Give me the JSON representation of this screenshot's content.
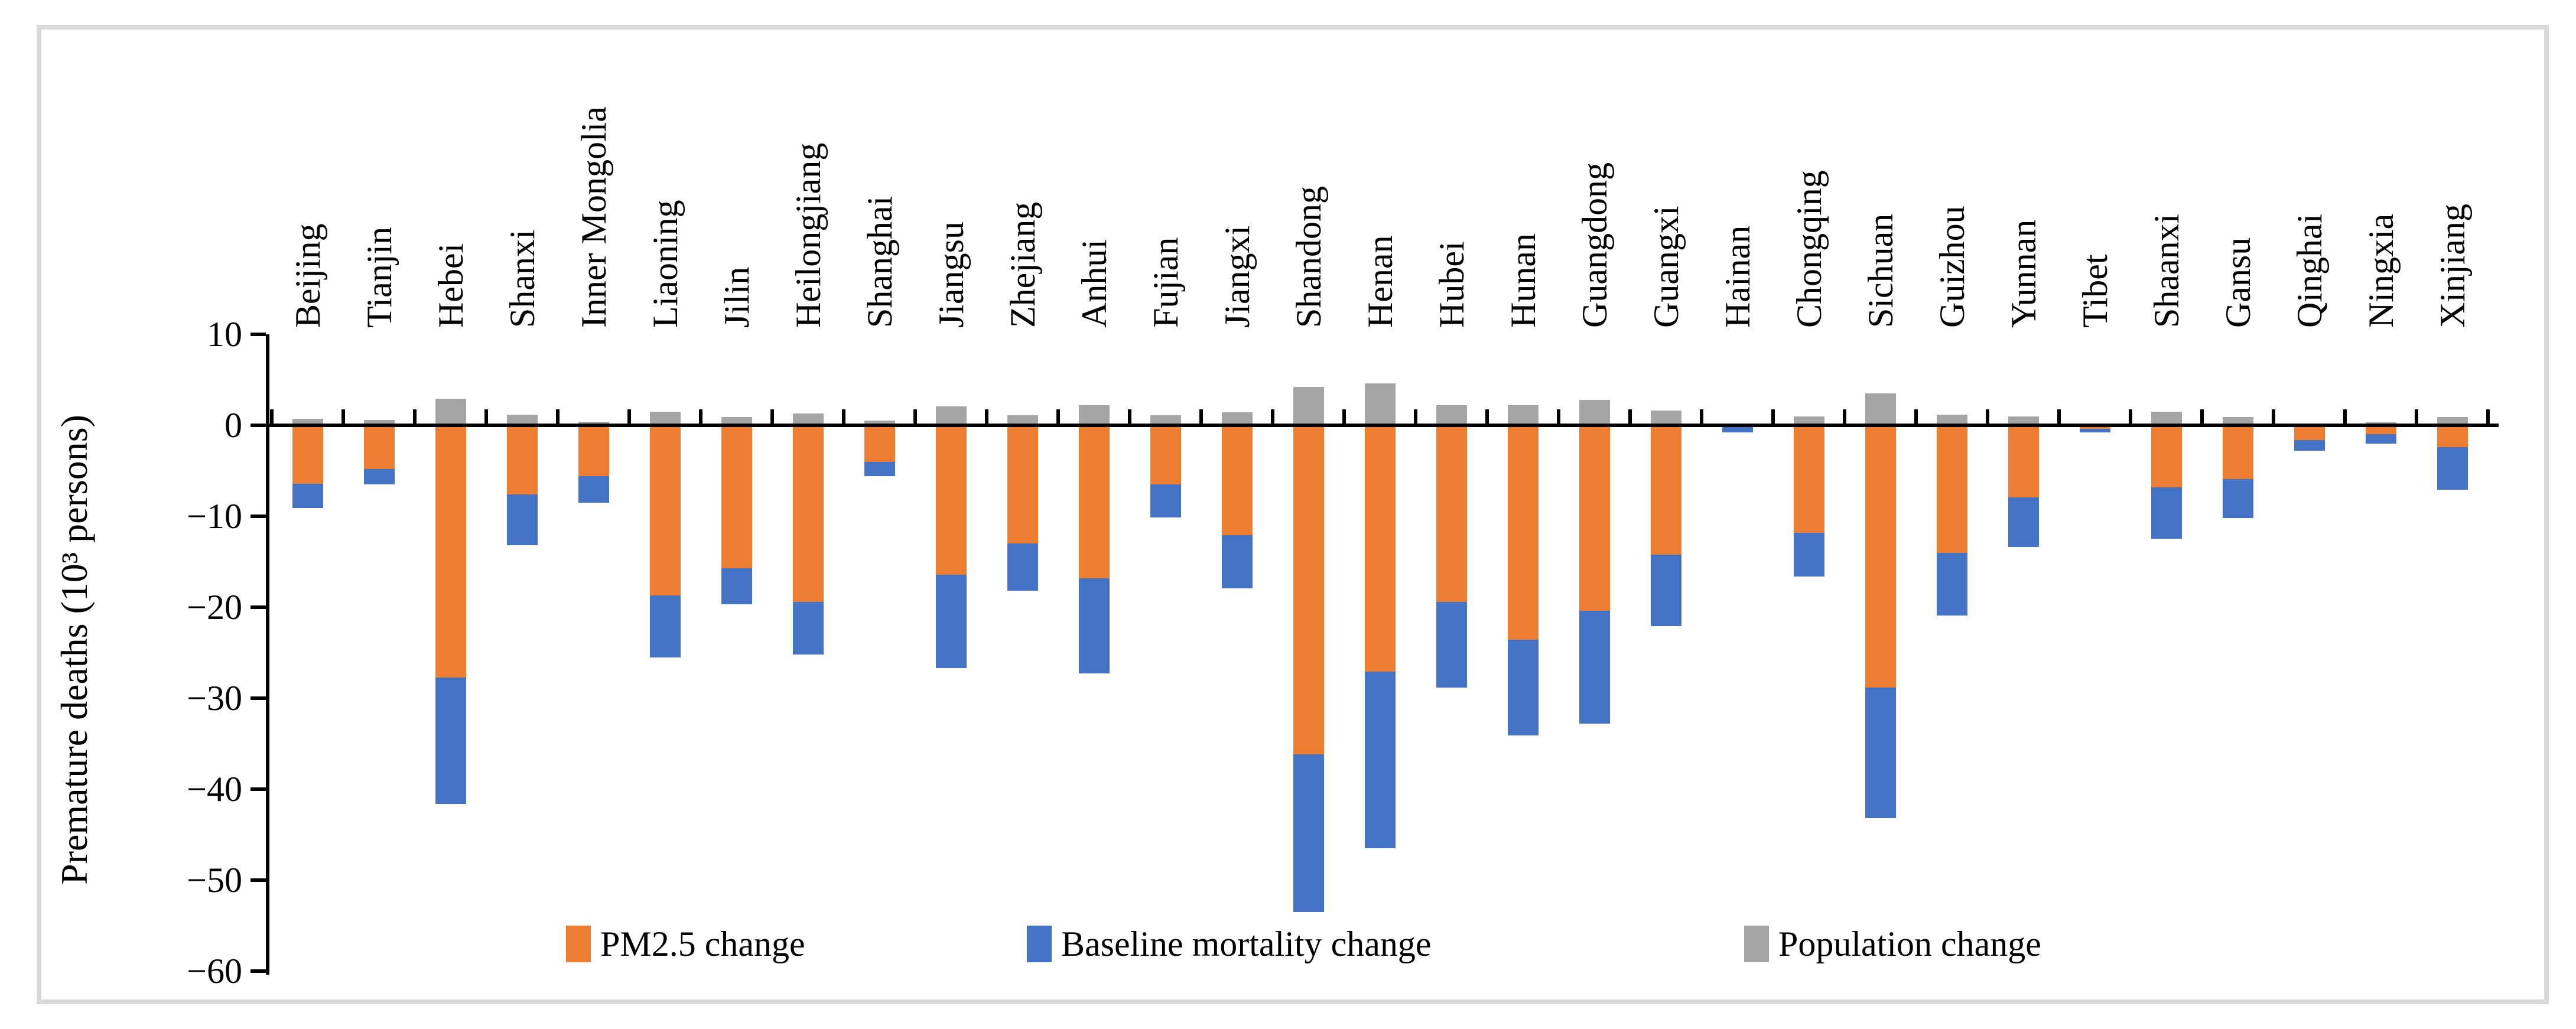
{
  "figure": {
    "background_color": "#ffffff",
    "frame_border_color": "#d9d9d9",
    "axis_color": "#000000"
  },
  "chart_data": {
    "type": "bar",
    "stacked": true,
    "orientation": "vertical",
    "title": "",
    "xlabel": "",
    "ylabel": "Premature deaths (10³ persons)",
    "ylim": [
      -60,
      10
    ],
    "ytick_interval": 10,
    "yticks": [
      10,
      0,
      -10,
      -20,
      -30,
      -40,
      -50,
      -60
    ],
    "ytick_labels": [
      "10",
      "0",
      "−10",
      "−20",
      "−30",
      "−40",
      "−50",
      "−60"
    ],
    "grid": false,
    "legend_position": "bottom-inside",
    "category_labels_position": "top-rotated-90",
    "categories": [
      "Beijing",
      "Tianjin",
      "Hebei",
      "Shanxi",
      "Inner Mongolia",
      "Liaoning",
      "Jilin",
      "Heilongjiang",
      "Shanghai",
      "Jiangsu",
      "Zhejiang",
      "Anhui",
      "Fujian",
      "Jiangxi",
      "Shandong",
      "Henan",
      "Hubei",
      "Hunan",
      "Guangdong",
      "Guangxi",
      "Hainan",
      "Chongqing",
      "Sichuan",
      "Guizhou",
      "Yunnan",
      "Tibet",
      "Shaanxi",
      "Gansu",
      "Qinghai",
      "Ningxia",
      "Xinjiang"
    ],
    "series": [
      {
        "name": "PM2.5 change",
        "color": "#ED7D31",
        "values": [
          -6.4,
          -4.8,
          -27.7,
          -7.6,
          -5.6,
          -18.7,
          -15.7,
          -19.4,
          -4.0,
          -16.4,
          -13.0,
          -16.8,
          -6.5,
          -12.1,
          -36.2,
          -27.1,
          -19.4,
          -23.6,
          -20.4,
          -14.2,
          -0.1,
          -11.8,
          -28.8,
          -14.0,
          -7.9,
          -0.4,
          -6.8,
          -5.9,
          -1.6,
          -1.0,
          -2.4
        ]
      },
      {
        "name": "Baseline mortality change",
        "color": "#4472C4",
        "values": [
          -2.7,
          -1.7,
          -13.9,
          -5.6,
          -2.9,
          -6.8,
          -4.0,
          -5.8,
          -1.6,
          -10.3,
          -5.2,
          -10.5,
          -3.6,
          -5.8,
          -17.3,
          -19.4,
          -9.4,
          -10.5,
          -12.4,
          -7.9,
          -0.7,
          -4.8,
          -14.4,
          -6.9,
          -5.5,
          -0.4,
          -5.7,
          -4.3,
          -1.2,
          -1.0,
          -4.7
        ]
      },
      {
        "name": "Population change",
        "color": "#A5A5A5",
        "values": [
          0.7,
          0.6,
          2.9,
          1.2,
          0.4,
          1.5,
          0.9,
          1.3,
          0.5,
          2.1,
          1.1,
          2.2,
          1.1,
          1.4,
          4.2,
          4.6,
          2.2,
          2.2,
          2.8,
          1.6,
          0.2,
          1.0,
          3.5,
          1.2,
          1.0,
          0.2,
          1.5,
          0.9,
          0.2,
          0.3,
          0.9
        ]
      }
    ]
  }
}
